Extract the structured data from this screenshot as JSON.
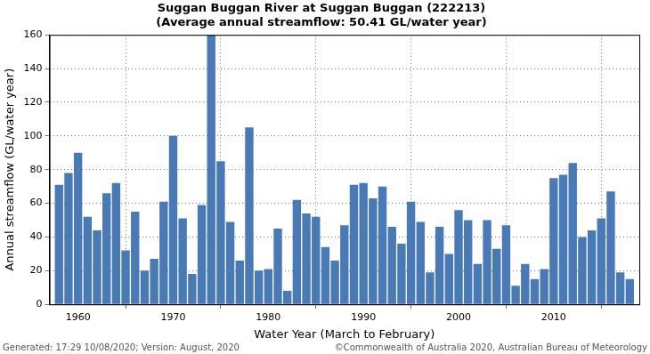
{
  "chart_data": {
    "type": "bar",
    "title": [
      "Suggan Buggan River at Suggan Buggan (222213)",
      "(Average annual streamflow: 50.41 GL/water year)"
    ],
    "x_label": "Water Year (March to February)",
    "y_label": "Annual streamflow (GL/water year)",
    "annotations": [
      "Generated: 17:29 10/08/2020; Version: August, 2020",
      "©Commonwealth of Australia 2020, Australian Bureau of Meteorology"
    ],
    "x": [
      1958,
      1959,
      1960,
      1961,
      1962,
      1963,
      1964,
      1965,
      1966,
      1967,
      1968,
      1969,
      1970,
      1971,
      1972,
      1973,
      1974,
      1975,
      1976,
      1977,
      1978,
      1979,
      1980,
      1981,
      1982,
      1983,
      1984,
      1985,
      1986,
      1987,
      1988,
      1989,
      1990,
      1991,
      1992,
      1993,
      1994,
      1995,
      1996,
      1997,
      1998,
      1999,
      2000,
      2001,
      2002,
      2003,
      2004,
      2005,
      2006,
      2007,
      2008,
      2009,
      2010,
      2011,
      2012,
      2013,
      2014,
      2015,
      2016,
      2017,
      2018
    ],
    "values": [
      71,
      78,
      90,
      52,
      44,
      66,
      72,
      32,
      55,
      20,
      27,
      61,
      100,
      51,
      18,
      59,
      160,
      85,
      49,
      26,
      105,
      20,
      21,
      45,
      8,
      62,
      54,
      52,
      34,
      26,
      47,
      71,
      72,
      63,
      70,
      46,
      36,
      61,
      49,
      19,
      46,
      30,
      56,
      50,
      24,
      50,
      33,
      47,
      11,
      24,
      15,
      21,
      75,
      77,
      84,
      40,
      44,
      51,
      67,
      19,
      15
    ],
    "color": "#4a7ab5",
    "xlim": [
      1957,
      2019
    ],
    "xticks": [
      1960,
      1970,
      1980,
      1990,
      2000,
      2010
    ],
    "ylim": [
      0,
      160
    ],
    "yticks": [
      0,
      20,
      40,
      60,
      80,
      100,
      120,
      140,
      160
    ],
    "grid": true
  }
}
